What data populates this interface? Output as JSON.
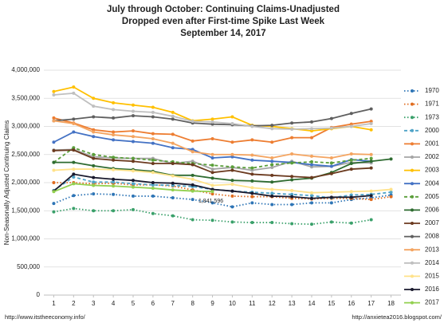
{
  "chart_data": {
    "type": "line",
    "title": [
      "July through October:  Continuing Claims-Unadjusted",
      "Dropped even after First-time Spike Last Week",
      "September 14, 2017"
    ],
    "y_label": "Non-Seasonally Adjusted Continuing Claims",
    "annotation": "1,841,596",
    "sources": [
      "http://www.itstheeconomy.info/",
      "http://anxietea2016.blogspot.com/"
    ],
    "x": [
      1,
      2,
      3,
      4,
      5,
      6,
      7,
      8,
      9,
      10,
      11,
      12,
      13,
      14,
      15,
      16,
      17,
      18
    ],
    "xlim": [
      0.5,
      18.5
    ],
    "xticks": [
      1,
      2,
      3,
      4,
      5,
      6,
      7,
      8,
      9,
      10,
      11,
      12,
      13,
      14,
      15,
      16,
      17,
      18
    ],
    "ylim": [
      0,
      4000000
    ],
    "yticks": [
      0,
      {
        "value": 500000,
        "label": "500,000"
      },
      {
        "value": 1000000,
        "label": "1,000,000"
      },
      {
        "value": 1500000,
        "label": "1,500,000"
      },
      {
        "value": 2000000,
        "label": "2,000,000"
      },
      {
        "value": 2500000,
        "label": "2,500,000"
      },
      {
        "value": 3000000,
        "label": "3,000,000"
      },
      {
        "value": 3500000,
        "label": "3,500,000"
      },
      {
        "value": 4000000,
        "label": "4,000,000"
      }
    ],
    "grid": true,
    "legend": "right",
    "series": [
      {
        "name": "1970",
        "color": "#2e75b6",
        "dash": "dotted",
        "values": [
          1630000,
          1770000,
          1800000,
          1790000,
          1760000,
          1760000,
          1730000,
          1700000,
          1640000,
          1570000,
          1640000,
          1610000,
          1610000,
          1640000,
          1640000,
          1700000,
          1730000,
          1780000
        ]
      },
      {
        "name": "1971",
        "color": "#e06c1f",
        "dash": "dotted",
        "values": [
          2000000,
          2000000,
          1980000,
          1990000,
          1960000,
          1960000,
          1940000,
          1870000,
          1800000,
          1760000,
          1750000,
          1750000,
          1720000,
          1710000,
          1720000,
          1720000,
          1700000,
          1750000
        ]
      },
      {
        "name": "1973",
        "color": "#3aa06a",
        "dash": "dotted",
        "values": [
          1480000,
          1540000,
          1500000,
          1500000,
          1520000,
          1450000,
          1410000,
          1340000,
          1330000,
          1300000,
          1290000,
          1290000,
          1270000,
          1260000,
          1300000,
          1280000,
          1340000,
          null
        ]
      },
      {
        "name": "2000",
        "color": "#4fa3c7",
        "dash": "dashed",
        "values": [
          1860000,
          2100000,
          2010000,
          2010000,
          1980000,
          1960000,
          1950000,
          1930000,
          1880000,
          1850000,
          1830000,
          1810000,
          1790000,
          1770000,
          1730000,
          1780000,
          1790000,
          1830000
        ]
      },
      {
        "name": "2001",
        "color": "#ed7d31",
        "dash": "solid",
        "values": [
          3150000,
          3060000,
          2940000,
          2900000,
          2920000,
          2870000,
          2860000,
          2740000,
          2780000,
          2720000,
          2760000,
          2720000,
          2800000,
          2800000,
          2980000,
          3040000,
          3090000,
          null
        ]
      },
      {
        "name": "2002",
        "color": "#a5a5a5",
        "dash": "solid",
        "values": [
          2580000,
          2590000,
          2460000,
          2440000,
          2430000,
          2430000,
          2340000,
          2380000,
          2240000,
          2270000,
          2220000,
          2270000,
          2380000,
          2280000,
          2290000,
          2360000,
          2350000,
          null
        ]
      },
      {
        "name": "2003",
        "color": "#ffc000",
        "dash": "solid",
        "values": [
          3620000,
          3700000,
          3500000,
          3420000,
          3380000,
          3340000,
          3250000,
          3100000,
          3130000,
          3170000,
          3020000,
          3000000,
          2960000,
          2920000,
          2960000,
          3000000,
          2940000,
          null
        ]
      },
      {
        "name": "2004",
        "color": "#4472c4",
        "dash": "solid",
        "values": [
          2720000,
          2900000,
          2820000,
          2760000,
          2730000,
          2700000,
          2620000,
          2590000,
          2440000,
          2460000,
          2400000,
          2380000,
          2360000,
          2320000,
          2290000,
          2410000,
          2380000,
          null
        ]
      },
      {
        "name": "2005",
        "color": "#5a9e3a",
        "dash": "dashed",
        "values": [
          2360000,
          2620000,
          2500000,
          2450000,
          2430000,
          2400000,
          2370000,
          2340000,
          2310000,
          2280000,
          2260000,
          2320000,
          2350000,
          2370000,
          2350000,
          2400000,
          2430000,
          null
        ]
      },
      {
        "name": "2006",
        "color": "#2e6b30",
        "dash": "solid",
        "values": [
          2360000,
          2360000,
          2300000,
          2250000,
          2230000,
          2200000,
          2130000,
          2130000,
          2080000,
          2040000,
          2030000,
          2010000,
          2050000,
          2080000,
          2180000,
          2340000,
          2380000,
          2420000
        ]
      },
      {
        "name": "2007",
        "color": "#6b3a1f",
        "dash": "solid",
        "values": [
          2570000,
          2580000,
          2430000,
          2400000,
          2380000,
          2340000,
          2340000,
          2320000,
          2180000,
          2220000,
          2150000,
          2130000,
          2110000,
          2090000,
          2160000,
          2240000,
          2260000,
          null
        ]
      },
      {
        "name": "2008",
        "color": "#5f5f5f",
        "dash": "solid",
        "values": [
          3100000,
          3130000,
          3170000,
          3150000,
          3190000,
          3170000,
          3130000,
          3060000,
          3040000,
          3030000,
          3010000,
          3020000,
          3060000,
          3080000,
          3140000,
          3230000,
          3310000,
          null
        ]
      },
      {
        "name": "2013",
        "color": "#f4a460",
        "dash": "solid",
        "values": [
          3100000,
          3050000,
          2900000,
          2850000,
          2820000,
          2780000,
          2700000,
          2550000,
          2500000,
          2500000,
          2490000,
          2440000,
          2510000,
          2470000,
          2440000,
          2510000,
          2500000,
          null
        ]
      },
      {
        "name": "2014",
        "color": "#bfbfbf",
        "dash": "solid",
        "values": [
          3560000,
          3590000,
          3360000,
          3300000,
          3270000,
          3250000,
          3180000,
          3090000,
          3080000,
          3050000,
          3000000,
          2960000,
          2950000,
          2960000,
          2970000,
          3000000,
          3050000,
          null
        ]
      },
      {
        "name": "2015",
        "color": "#ffe28a",
        "dash": "solid",
        "values": [
          2220000,
          2240000,
          2240000,
          2230000,
          2210000,
          2180000,
          2120000,
          2060000,
          1950000,
          1970000,
          1910000,
          1880000,
          1860000,
          1820000,
          1830000,
          1840000,
          1850000,
          1880000
        ]
      },
      {
        "name": "2016",
        "color": "#1a1a2e",
        "dash": "solid",
        "values": [
          1850000,
          2150000,
          2090000,
          2060000,
          2040000,
          2000000,
          1990000,
          1960000,
          1880000,
          1850000,
          1810000,
          1760000,
          1750000,
          1720000,
          1740000,
          1740000,
          1770000,
          null
        ]
      },
      {
        "name": "2017",
        "color": "#92d050",
        "dash": "solid",
        "values": [
          1840000,
          1980000,
          1950000,
          1940000,
          1920000,
          1900000,
          1870000,
          1850000,
          1841596,
          null,
          null,
          null,
          null,
          null,
          null,
          null,
          null,
          null
        ]
      }
    ]
  }
}
